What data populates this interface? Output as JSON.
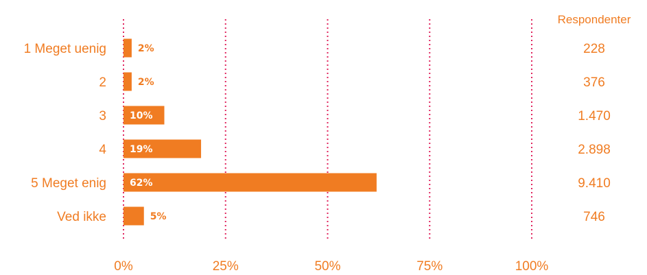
{
  "chart_data": {
    "type": "bar",
    "orientation": "horizontal",
    "categories": [
      "1 Meget uenig",
      "2",
      "3",
      "4",
      "5 Meget enig",
      "Ved ikke"
    ],
    "values": [
      2,
      2,
      10,
      19,
      62,
      5
    ],
    "value_labels": [
      "2%",
      "2%",
      "10%",
      "19%",
      "62%",
      "5%"
    ],
    "xlim": [
      0,
      100
    ],
    "x_ticks": [
      0,
      25,
      50,
      75,
      100
    ],
    "x_tick_labels": [
      "0%",
      "25%",
      "50%",
      "75%",
      "100%"
    ],
    "grid": true,
    "grid_style": "dotted",
    "respondents_header": "Respondenter",
    "respondents": [
      "228",
      "376",
      "1.470",
      "2.898",
      "9.410",
      "746"
    ],
    "colors": {
      "bar": "#f07c22",
      "text": "#f07c22",
      "grid": "#e0245e",
      "label_inside": "#ffffff",
      "label_outside": "#f07c22"
    }
  }
}
